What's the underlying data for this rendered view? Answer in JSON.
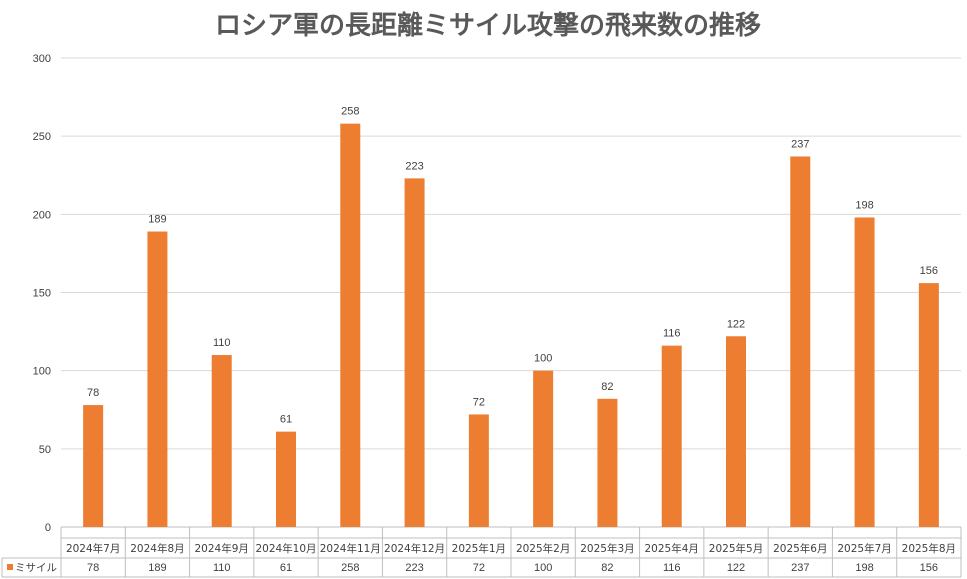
{
  "chart_data": {
    "type": "bar",
    "title": "ロシア軍の長距離ミサイル攻撃の飛来数の推移",
    "categories": [
      "2024年7月",
      "2024年8月",
      "2024年9月",
      "2024年10月",
      "2024年11月",
      "2024年12月",
      "2025年1月",
      "2025年2月",
      "2025年3月",
      "2025年4月",
      "2025年5月",
      "2025年6月",
      "2025年7月",
      "2025年8月"
    ],
    "series": [
      {
        "name": "ミサイル",
        "color": "#ED7D31",
        "values": [
          78,
          189,
          110,
          61,
          258,
          223,
          72,
          100,
          82,
          116,
          122,
          237,
          198,
          156
        ]
      }
    ],
    "ylim": [
      0,
      300
    ],
    "yticks": [
      0,
      50,
      100,
      150,
      200,
      250,
      300
    ],
    "grid": true,
    "data_labels": true,
    "data_table": true
  }
}
